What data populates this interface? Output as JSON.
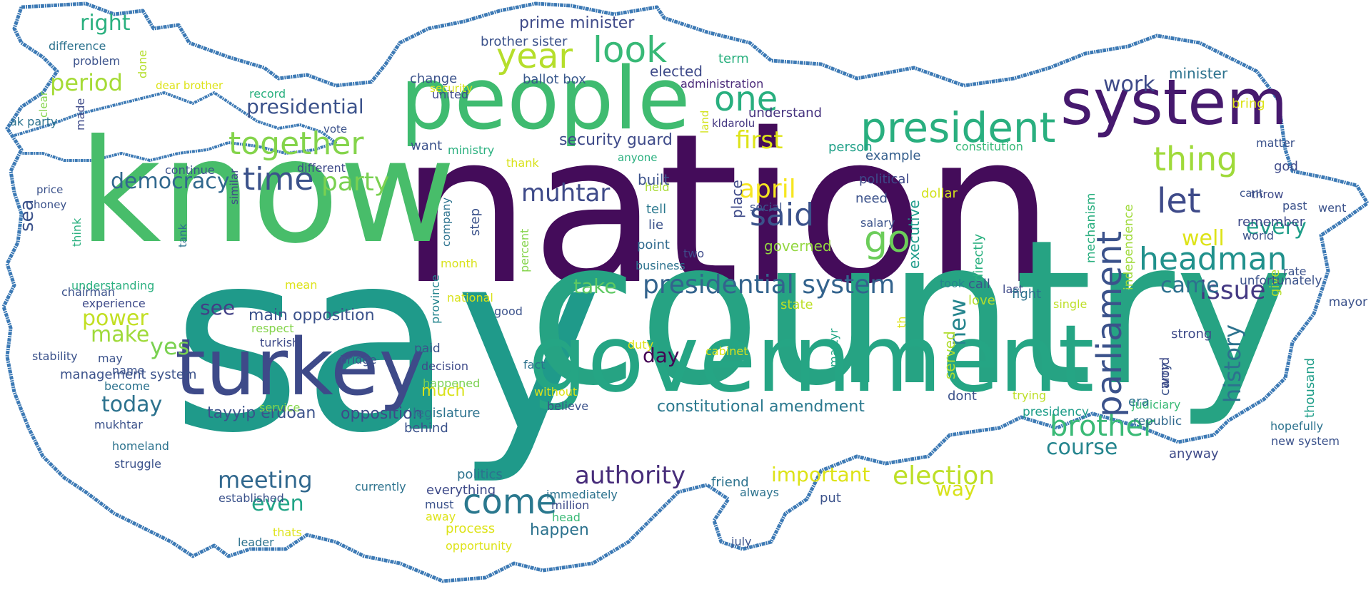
{
  "words": [
    {
      "text": "nation",
      "color": "#440c5a"
    },
    {
      "text": "say",
      "color": "#1f9a8a"
    },
    {
      "text": "country",
      "color": "#26a383"
    },
    {
      "text": "know",
      "color": "#48bd6a"
    },
    {
      "text": "people",
      "color": "#3fbb70"
    },
    {
      "text": "government",
      "color": "#25a584"
    },
    {
      "text": "turkey",
      "color": "#3e4a89"
    },
    {
      "text": "system",
      "color": "#46196e"
    },
    {
      "text": "president",
      "color": "#29af7f"
    },
    {
      "text": "time",
      "color": "#3b528b"
    },
    {
      "text": "together",
      "color": "#84d44b"
    },
    {
      "text": "look",
      "color": "#38b977"
    },
    {
      "text": "year",
      "color": "#b5de2b"
    },
    {
      "text": "one",
      "color": "#29af7f"
    },
    {
      "text": "thing",
      "color": "#9fda3a"
    },
    {
      "text": "said",
      "color": "#3b528b"
    },
    {
      "text": "let",
      "color": "#3e4a89"
    },
    {
      "text": "headman",
      "color": "#21918c"
    },
    {
      "text": "parliament",
      "color": "#3b528b"
    },
    {
      "text": "presidential system",
      "color": "#33638d"
    },
    {
      "text": "come",
      "color": "#2a788e"
    },
    {
      "text": "brother",
      "color": "#3aba76"
    },
    {
      "text": "election",
      "color": "#bddf26"
    },
    {
      "text": "authority",
      "color": "#472c7a"
    },
    {
      "text": "go",
      "color": "#6ccd5a"
    },
    {
      "text": "party",
      "color": "#7ad151"
    },
    {
      "text": "democracy",
      "color": "#31688e"
    },
    {
      "text": "april",
      "color": "#f6e620"
    },
    {
      "text": "first",
      "color": "#dde318"
    },
    {
      "text": "presidential",
      "color": "#3b528b"
    },
    {
      "text": "muhtar",
      "color": "#3e4a89"
    },
    {
      "text": "issue",
      "color": "#443983"
    },
    {
      "text": "history",
      "color": "#2c728e"
    },
    {
      "text": "course",
      "color": "#25858e"
    },
    {
      "text": "every",
      "color": "#1f9e89"
    },
    {
      "text": "well",
      "color": "#dde318"
    },
    {
      "text": "came",
      "color": "#2d708e"
    },
    {
      "text": "new",
      "color": "#25858e"
    },
    {
      "text": "work",
      "color": "#3e4a89"
    },
    {
      "text": "right",
      "color": "#2ab07f"
    },
    {
      "text": "period",
      "color": "#a5db36"
    },
    {
      "text": "meeting",
      "color": "#31688e"
    },
    {
      "text": "even",
      "color": "#20a486"
    },
    {
      "text": "today",
      "color": "#2c728e"
    },
    {
      "text": "power",
      "color": "#c2df23"
    },
    {
      "text": "make",
      "color": "#9fda3a"
    },
    {
      "text": "yes",
      "color": "#7ad151"
    },
    {
      "text": "see",
      "color": "#424086"
    },
    {
      "text": "day",
      "color": "#440154"
    },
    {
      "text": "take",
      "color": "#5ec962"
    },
    {
      "text": "important",
      "color": "#dde318"
    },
    {
      "text": "way",
      "color": "#d8e219"
    },
    {
      "text": "sea",
      "color": "#3b528b"
    },
    {
      "text": "much",
      "color": "#d8e219"
    },
    {
      "text": "happen",
      "color": "#2c728e"
    },
    {
      "text": "constitutional amendment",
      "color": "#2a788e"
    },
    {
      "text": "main opposition",
      "color": "#3b528b"
    },
    {
      "text": "opposition",
      "color": "#3e4a89"
    },
    {
      "text": "tayyip erdoan",
      "color": "#3b528b"
    },
    {
      "text": "security guard",
      "color": "#3e4a89"
    },
    {
      "text": "prime minister",
      "color": "#3e4a89"
    },
    {
      "text": "brother sister",
      "color": "#3b528b"
    },
    {
      "text": "ballot box",
      "color": "#38588c"
    },
    {
      "text": "elected",
      "color": "#3e4a89"
    },
    {
      "text": "term",
      "color": "#2ab07f"
    },
    {
      "text": "administration",
      "color": "#482878"
    },
    {
      "text": "understand",
      "color": "#46337f"
    },
    {
      "text": "kldarolu",
      "color": "#453882"
    },
    {
      "text": "land",
      "color": "#d2e21b"
    },
    {
      "text": "person",
      "color": "#1fa088"
    },
    {
      "text": "constitution",
      "color": "#37b878"
    },
    {
      "text": "example",
      "color": "#355f8d"
    },
    {
      "text": "political",
      "color": "#3e4989"
    },
    {
      "text": "need",
      "color": "#3b528b"
    },
    {
      "text": "dollar",
      "color": "#d2e21b"
    },
    {
      "text": "executive",
      "color": "#1e9b8a"
    },
    {
      "text": "directly",
      "color": "#2ab07f"
    },
    {
      "text": "salary",
      "color": "#3b528b"
    },
    {
      "text": "social",
      "color": "#3b528b"
    },
    {
      "text": "place",
      "color": "#3e4a89"
    },
    {
      "text": "held",
      "color": "#a8db34"
    },
    {
      "text": "tell",
      "color": "#2a788e"
    },
    {
      "text": "lie",
      "color": "#3b528b"
    },
    {
      "text": "point",
      "color": "#306a8e"
    },
    {
      "text": "two",
      "color": "#3e4a89"
    },
    {
      "text": "business",
      "color": "#2c728e"
    },
    {
      "text": "built",
      "color": "#3b528b"
    },
    {
      "text": "governed",
      "color": "#93d741"
    },
    {
      "text": "took",
      "color": "#25858e"
    },
    {
      "text": "call",
      "color": "#3b528b"
    },
    {
      "text": "last",
      "color": "#3e4a89"
    },
    {
      "text": "fight",
      "color": "#2c728e"
    },
    {
      "text": "love",
      "color": "#b5de2b"
    },
    {
      "text": "state",
      "color": "#bddf26"
    },
    {
      "text": "th",
      "color": "#dde318"
    },
    {
      "text": "martyr",
      "color": "#22a785"
    },
    {
      "text": "served",
      "color": "#b0dd2f"
    },
    {
      "text": "dont",
      "color": "#3b528b"
    },
    {
      "text": "trying",
      "color": "#bddf26"
    },
    {
      "text": "presidency",
      "color": "#1e9d89"
    },
    {
      "text": "judiciary",
      "color": "#3aba76"
    },
    {
      "text": "republic",
      "color": "#31688e"
    },
    {
      "text": "era",
      "color": "#2c728e"
    },
    {
      "text": "carry",
      "color": "#3b528b"
    },
    {
      "text": "word",
      "color": "#3e4a89"
    },
    {
      "text": "strong",
      "color": "#3e4a89"
    },
    {
      "text": "anyway",
      "color": "#3e4a89"
    },
    {
      "text": "new system",
      "color": "#3b528b"
    },
    {
      "text": "hopefully",
      "color": "#2c728e"
    },
    {
      "text": "thousand",
      "color": "#1f9e89"
    },
    {
      "text": "give",
      "color": "#b5de2b"
    },
    {
      "text": "mayor",
      "color": "#3b528b"
    },
    {
      "text": "unfortunately",
      "color": "#3b528b"
    },
    {
      "text": "single",
      "color": "#bddf26"
    },
    {
      "text": "independence",
      "color": "#9fda3a"
    },
    {
      "text": "mechanism",
      "color": "#29af7f"
    },
    {
      "text": "rate",
      "color": "#3b528b"
    },
    {
      "text": "world",
      "color": "#3b528b"
    },
    {
      "text": "remember",
      "color": "#3e4a89"
    },
    {
      "text": "went",
      "color": "#3b528b"
    },
    {
      "text": "past",
      "color": "#3b528b"
    },
    {
      "text": "throw",
      "color": "#3e4a89"
    },
    {
      "text": "cant",
      "color": "#3b528b"
    },
    {
      "text": "god",
      "color": "#3e4a89"
    },
    {
      "text": "matter",
      "color": "#3b528b"
    },
    {
      "text": "bring",
      "color": "#dde318"
    },
    {
      "text": "minister",
      "color": "#2c728e"
    },
    {
      "text": "security",
      "color": "#d8e219"
    },
    {
      "text": "change",
      "color": "#3b528b"
    },
    {
      "text": "united",
      "color": "#3e4a89"
    },
    {
      "text": "want",
      "color": "#3b528b"
    },
    {
      "text": "ministry",
      "color": "#2ab07f"
    },
    {
      "text": "thank",
      "color": "#d8e219"
    },
    {
      "text": "anyone",
      "color": "#2ab07f"
    },
    {
      "text": "company",
      "color": "#2c728e"
    },
    {
      "text": "step",
      "color": "#3b528b"
    },
    {
      "text": "month",
      "color": "#d8e219"
    },
    {
      "text": "percent",
      "color": "#84d44b"
    },
    {
      "text": "national",
      "color": "#d8e219"
    },
    {
      "text": "province",
      "color": "#25858e"
    },
    {
      "text": "good",
      "color": "#3b528b"
    },
    {
      "text": "paid",
      "color": "#3b528b"
    },
    {
      "text": "decision",
      "color": "#3e4a89"
    },
    {
      "text": "happened",
      "color": "#7ad151"
    },
    {
      "text": "fact",
      "color": "#2c728e"
    },
    {
      "text": "without",
      "color": "#dde318"
    },
    {
      "text": "believe",
      "color": "#3b528b"
    },
    {
      "text": "legislature",
      "color": "#2c728e"
    },
    {
      "text": "behind",
      "color": "#3b528b"
    },
    {
      "text": "duty",
      "color": "#dde318"
    },
    {
      "text": "cabinet",
      "color": "#dde318"
    },
    {
      "text": "politics",
      "color": "#2c728e"
    },
    {
      "text": "everything",
      "color": "#3e4a89"
    },
    {
      "text": "immediately",
      "color": "#2c728e"
    },
    {
      "text": "million",
      "color": "#3e4a89"
    },
    {
      "text": "head",
      "color": "#3aba76"
    },
    {
      "text": "process",
      "color": "#dde318"
    },
    {
      "text": "opportunity",
      "color": "#dde318"
    },
    {
      "text": "friend",
      "color": "#2c728e"
    },
    {
      "text": "always",
      "color": "#2c728e"
    },
    {
      "text": "put",
      "color": "#3b528b"
    },
    {
      "text": "july",
      "color": "#3b528b"
    },
    {
      "text": "currently",
      "color": "#2c728e"
    },
    {
      "text": "must",
      "color": "#3b528b"
    },
    {
      "text": "away",
      "color": "#dde318"
    },
    {
      "text": "established",
      "color": "#3b528b"
    },
    {
      "text": "thats",
      "color": "#dde318"
    },
    {
      "text": "leader",
      "color": "#2c728e"
    },
    {
      "text": "service",
      "color": "#84d44b"
    },
    {
      "text": "homeland",
      "color": "#2c728e"
    },
    {
      "text": "struggle",
      "color": "#3b528b"
    },
    {
      "text": "mukhtar",
      "color": "#3b528b"
    },
    {
      "text": "become",
      "color": "#2c728e"
    },
    {
      "text": "name",
      "color": "#3b528b"
    },
    {
      "text": "management system",
      "color": "#3b528b"
    },
    {
      "text": "stability",
      "color": "#3b528b"
    },
    {
      "text": "bridge",
      "color": "#3b528b"
    },
    {
      "text": "turkish",
      "color": "#3e4a89"
    },
    {
      "text": "respect",
      "color": "#84d44b"
    },
    {
      "text": "experience",
      "color": "#3e4a89"
    },
    {
      "text": "chairman",
      "color": "#3b528b"
    },
    {
      "text": "understanding",
      "color": "#2ab07f"
    },
    {
      "text": "mean",
      "color": "#dde318"
    },
    {
      "text": "may",
      "color": "#3b528b"
    },
    {
      "text": "tank",
      "color": "#2c728e"
    },
    {
      "text": "think",
      "color": "#2ab07f"
    },
    {
      "text": "honey",
      "color": "#3b528b"
    },
    {
      "text": "price",
      "color": "#3b528b"
    },
    {
      "text": "similar",
      "color": "#3e4a89"
    },
    {
      "text": "continue",
      "color": "#3b528b"
    },
    {
      "text": "different",
      "color": "#3e4a89"
    },
    {
      "text": "vote",
      "color": "#3b528b"
    },
    {
      "text": "made",
      "color": "#3e4a89"
    },
    {
      "text": "clear",
      "color": "#84d44b"
    },
    {
      "text": "ak party",
      "color": "#2c728e"
    },
    {
      "text": "record",
      "color": "#2ab07f"
    },
    {
      "text": "dear brother",
      "color": "#dde318"
    },
    {
      "text": "done",
      "color": "#b5de2b"
    },
    {
      "text": "problem",
      "color": "#3b528b"
    },
    {
      "text": "difference",
      "color": "#2c728e"
    }
  ]
}
